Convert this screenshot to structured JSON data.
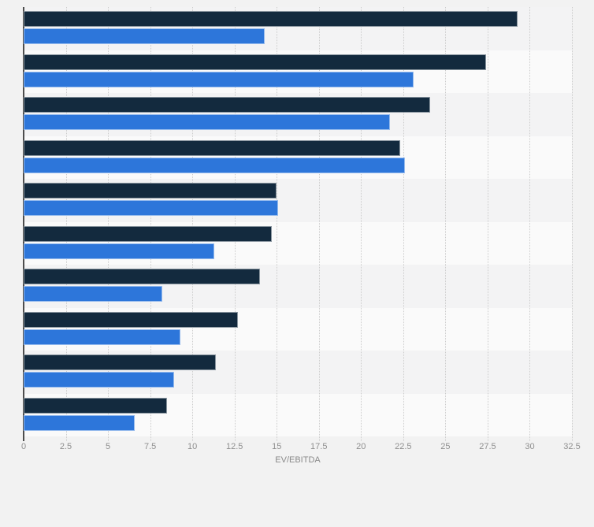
{
  "page": {
    "background_color": "#f2f2f2"
  },
  "chart_data": {
    "type": "bar",
    "orientation": "horizontal",
    "xlabel": "EV/EBITDA",
    "xlim": [
      0,
      32.5
    ],
    "x_ticks": [
      "0",
      "2.5",
      "5",
      "7.5",
      "10",
      "12.5",
      "15",
      "17.5",
      "20",
      "22.5",
      "25",
      "27.5",
      "30",
      "32.5"
    ],
    "grid": "vertical-dotted",
    "legend_position": "none",
    "num_groups": 10,
    "categories_visible": false,
    "series": [
      {
        "name": "dark-navy-series",
        "color": "#132a3e",
        "values": [
          29.3,
          27.4,
          24.1,
          22.3,
          15.0,
          14.7,
          14.0,
          12.7,
          11.4,
          8.5
        ]
      },
      {
        "name": "blue-series",
        "color": "#2d76da",
        "values": [
          14.3,
          23.1,
          21.7,
          22.6,
          15.1,
          11.3,
          8.2,
          9.3,
          8.9,
          6.6
        ]
      }
    ],
    "row_stripe_colors": [
      "#f3f3f4",
      "#fafafa"
    ],
    "axis_line_color": "#4d4d4d",
    "gridline_color": "#cccccc",
    "tick_label_color": "#8f8f8f",
    "axis_title_color": "#8a8a8a"
  }
}
